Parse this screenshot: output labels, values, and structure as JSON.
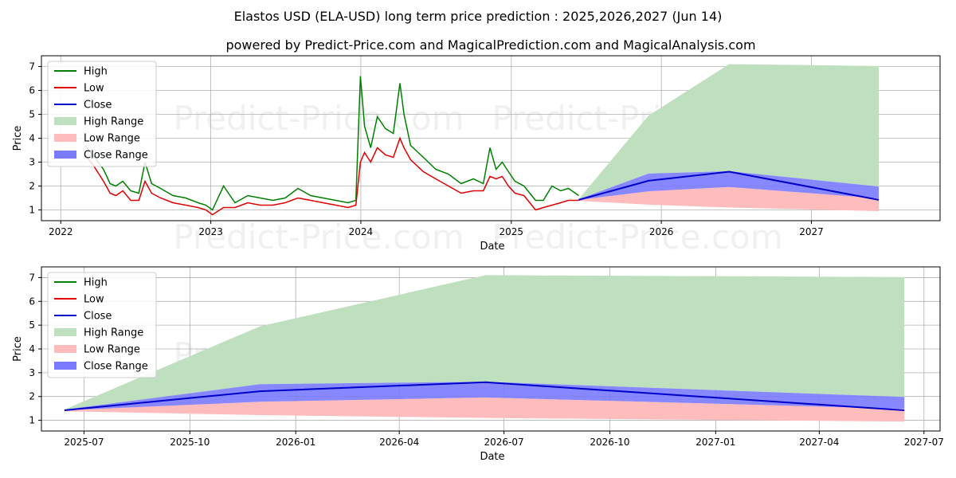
{
  "title": "Elastos USD (ELA-USD) long term price prediction : 2025,2026,2027 (Jun 14)",
  "subtitle": "powered by Predict-Price.com and MagicalPrediction.com and MagicalAnalysis.com",
  "watermark": "Predict-Price.com",
  "colors": {
    "high": "#008000",
    "low": "#e00000",
    "close": "#0000cc",
    "high_range": "#bfe0bf",
    "low_range": "#ffbcbc",
    "close_range": "#7a7aff",
    "grid": "#b0b0b0"
  },
  "chart_data": [
    {
      "type": "line",
      "xlabel": "Date",
      "ylabel": "Price",
      "x_domain": [
        "2021-11-15",
        "2027-11-10"
      ],
      "ylim": [
        0.55,
        7.45
      ],
      "grid": true,
      "x_ticks": [
        {
          "label": "2022",
          "date": "2022-01-01"
        },
        {
          "label": "2023",
          "date": "2023-01-01"
        },
        {
          "label": "2024",
          "date": "2024-01-01"
        },
        {
          "label": "2025",
          "date": "2025-01-01"
        },
        {
          "label": "2026",
          "date": "2026-01-01"
        },
        {
          "label": "2027",
          "date": "2027-01-01"
        }
      ],
      "y_ticks": [
        1,
        2,
        3,
        4,
        5,
        6,
        7
      ],
      "legend": {
        "position": "top-left",
        "entries": [
          "High",
          "Low",
          "Close",
          "High Range",
          "Low Range",
          "Close Range"
        ]
      },
      "history": {
        "dates": [
          "2022-03-01",
          "2022-03-20",
          "2022-04-15",
          "2022-05-01",
          "2022-05-15",
          "2022-06-01",
          "2022-06-20",
          "2022-07-10",
          "2022-07-25",
          "2022-08-10",
          "2022-09-01",
          "2022-10-01",
          "2022-11-01",
          "2022-12-01",
          "2022-12-20",
          "2023-01-05",
          "2023-02-01",
          "2023-03-01",
          "2023-04-01",
          "2023-05-01",
          "2023-06-01",
          "2023-07-01",
          "2023-08-01",
          "2023-09-01",
          "2023-10-01",
          "2023-11-01",
          "2023-12-01",
          "2023-12-20",
          "2023-12-31",
          "2024-01-10",
          "2024-01-25",
          "2024-02-10",
          "2024-03-01",
          "2024-03-20",
          "2024-04-05",
          "2024-04-15",
          "2024-05-01",
          "2024-06-01",
          "2024-07-01",
          "2024-08-01",
          "2024-09-01",
          "2024-10-01",
          "2024-10-25",
          "2024-11-10",
          "2024-11-25",
          "2024-12-10",
          "2024-12-25",
          "2025-01-10",
          "2025-02-01",
          "2025-02-15",
          "2025-03-01",
          "2025-03-20",
          "2025-04-10",
          "2025-05-01",
          "2025-05-20",
          "2025-06-14"
        ],
        "high": [
          3.7,
          3.3,
          2.7,
          2.1,
          2.0,
          2.2,
          1.8,
          1.7,
          3.0,
          2.1,
          1.9,
          1.6,
          1.5,
          1.3,
          1.2,
          1.0,
          2.0,
          1.3,
          1.6,
          1.5,
          1.4,
          1.5,
          1.9,
          1.6,
          1.5,
          1.4,
          1.3,
          1.4,
          6.6,
          4.5,
          3.6,
          4.9,
          4.4,
          4.2,
          6.3,
          5.0,
          3.7,
          3.2,
          2.7,
          2.5,
          2.1,
          2.3,
          2.1,
          3.6,
          2.7,
          3.0,
          2.6,
          2.2,
          2.0,
          1.7,
          1.4,
          1.4,
          2.0,
          1.8,
          1.9,
          1.6
        ],
        "low": [
          3.3,
          2.9,
          2.2,
          1.7,
          1.6,
          1.8,
          1.4,
          1.4,
          2.2,
          1.7,
          1.5,
          1.3,
          1.2,
          1.1,
          1.0,
          0.8,
          1.1,
          1.1,
          1.3,
          1.2,
          1.2,
          1.3,
          1.5,
          1.4,
          1.3,
          1.2,
          1.1,
          1.2,
          3.0,
          3.4,
          3.0,
          3.6,
          3.3,
          3.2,
          4.0,
          3.6,
          3.1,
          2.6,
          2.3,
          2.0,
          1.7,
          1.8,
          1.8,
          2.4,
          2.3,
          2.4,
          2.0,
          1.7,
          1.6,
          1.3,
          1.0,
          1.1,
          1.2,
          1.3,
          1.4,
          1.4
        ],
        "close": [
          3.5,
          3.1,
          2.4,
          1.9,
          1.8,
          2.0,
          1.6,
          1.5,
          2.6,
          1.9,
          1.7,
          1.5,
          1.4,
          1.2,
          1.1,
          0.9,
          1.5,
          1.2,
          1.4,
          1.35,
          1.3,
          1.4,
          1.6,
          1.5,
          1.4,
          1.3,
          1.2,
          1.3,
          4.0,
          3.8,
          3.3,
          4.0,
          3.7,
          3.6,
          4.5,
          4.0,
          3.4,
          2.9,
          2.5,
          2.2,
          1.9,
          2.0,
          1.95,
          2.9,
          2.5,
          2.7,
          2.3,
          1.9,
          1.8,
          1.5,
          1.2,
          1.25,
          1.4,
          1.5,
          1.6,
          1.45
        ]
      },
      "forecast": {
        "dates": [
          "2025-06-14",
          "2025-12-01",
          "2026-06-15",
          "2027-06-14"
        ],
        "high_range_upper": [
          1.45,
          4.95,
          7.1,
          7.02
        ],
        "close_range_upper": [
          1.45,
          2.52,
          2.62,
          1.98
        ],
        "close": [
          1.42,
          2.22,
          2.6,
          1.42
        ],
        "close_range_lower": [
          1.42,
          1.78,
          1.96,
          1.48
        ],
        "low_range_upper": [
          1.42,
          1.78,
          1.96,
          1.48
        ],
        "low_range_lower": [
          1.38,
          1.22,
          1.1,
          0.95
        ]
      }
    },
    {
      "type": "line",
      "xlabel": "Date",
      "ylabel": "Price",
      "x_domain": [
        "2025-05-25",
        "2027-07-15"
      ],
      "ylim": [
        0.55,
        7.45
      ],
      "grid": true,
      "x_ticks": [
        {
          "label": "2025-07",
          "date": "2025-07-01"
        },
        {
          "label": "2025-10",
          "date": "2025-10-01"
        },
        {
          "label": "2026-01",
          "date": "2026-01-01"
        },
        {
          "label": "2026-04",
          "date": "2026-04-01"
        },
        {
          "label": "2026-07",
          "date": "2026-07-01"
        },
        {
          "label": "2026-10",
          "date": "2026-10-01"
        },
        {
          "label": "2027-01",
          "date": "2027-01-01"
        },
        {
          "label": "2027-04",
          "date": "2027-04-01"
        },
        {
          "label": "2027-07",
          "date": "2027-07-01"
        }
      ],
      "y_ticks": [
        1,
        2,
        3,
        4,
        5,
        6,
        7
      ],
      "legend": {
        "position": "top-left",
        "entries": [
          "High",
          "Low",
          "Close",
          "High Range",
          "Low Range",
          "Close Range"
        ]
      },
      "forecast": {
        "dates": [
          "2025-06-14",
          "2025-12-01",
          "2026-06-15",
          "2027-06-14"
        ],
        "high_range_upper": [
          1.45,
          4.95,
          7.1,
          7.02
        ],
        "close_range_upper": [
          1.45,
          2.52,
          2.62,
          1.98
        ],
        "close": [
          1.42,
          2.22,
          2.6,
          1.42
        ],
        "close_range_lower": [
          1.42,
          1.78,
          1.96,
          1.48
        ],
        "low_range_upper": [
          1.42,
          1.78,
          1.96,
          1.48
        ],
        "low_range_lower": [
          1.38,
          1.22,
          1.1,
          0.95
        ]
      }
    }
  ]
}
